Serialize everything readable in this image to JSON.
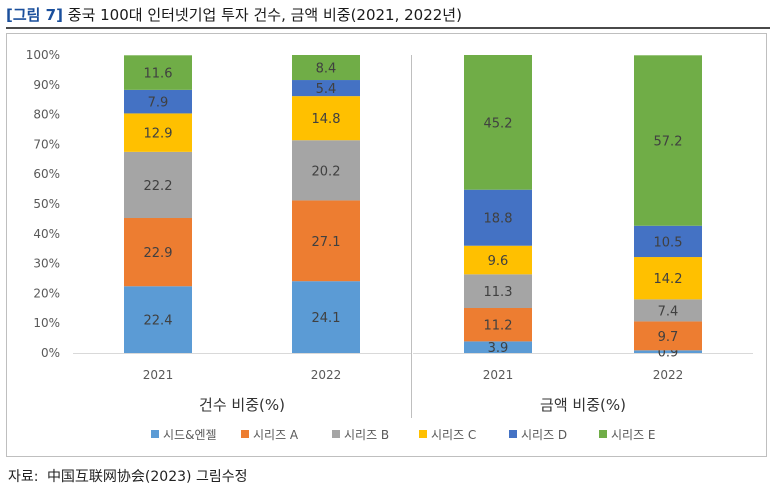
{
  "figure": {
    "number": "[그림 7]",
    "title": "중국 100대 인터넷기업 투자 건수, 금액 비중(2021, 2022년)",
    "source_label": "자료:",
    "source_text": "中国互联网协会(2023) 그림수정"
  },
  "chart_data": {
    "type": "bar",
    "stacked": true,
    "yticks": [
      "0%",
      "10%",
      "20%",
      "30%",
      "40%",
      "50%",
      "60%",
      "70%",
      "80%",
      "90%",
      "100%"
    ],
    "ylim": [
      0,
      100
    ],
    "grid": false,
    "legend_position": "bottom",
    "series": [
      {
        "name": "시드&엔젤",
        "color": "#5b9bd5"
      },
      {
        "name": "시리즈 A",
        "color": "#ed7d31"
      },
      {
        "name": "시리즈 B",
        "color": "#a5a5a5"
      },
      {
        "name": "시리즈 C",
        "color": "#ffc000"
      },
      {
        "name": "시리즈 D",
        "color": "#4472c4"
      },
      {
        "name": "시리즈 E",
        "color": "#70ad47"
      }
    ],
    "groups": [
      {
        "xlabel": "건수 비중(%)",
        "categories": [
          "2021",
          "2022"
        ],
        "values": [
          [
            22.4,
            22.9,
            22.2,
            12.9,
            7.9,
            11.6
          ],
          [
            24.1,
            27.1,
            20.2,
            14.8,
            5.4,
            8.4
          ]
        ]
      },
      {
        "xlabel": "금액 비중(%)",
        "categories": [
          "2021",
          "2022"
        ],
        "values": [
          [
            3.9,
            11.2,
            11.3,
            9.6,
            18.8,
            45.2
          ],
          [
            0.9,
            9.7,
            7.4,
            14.2,
            10.5,
            57.2
          ]
        ]
      }
    ]
  }
}
